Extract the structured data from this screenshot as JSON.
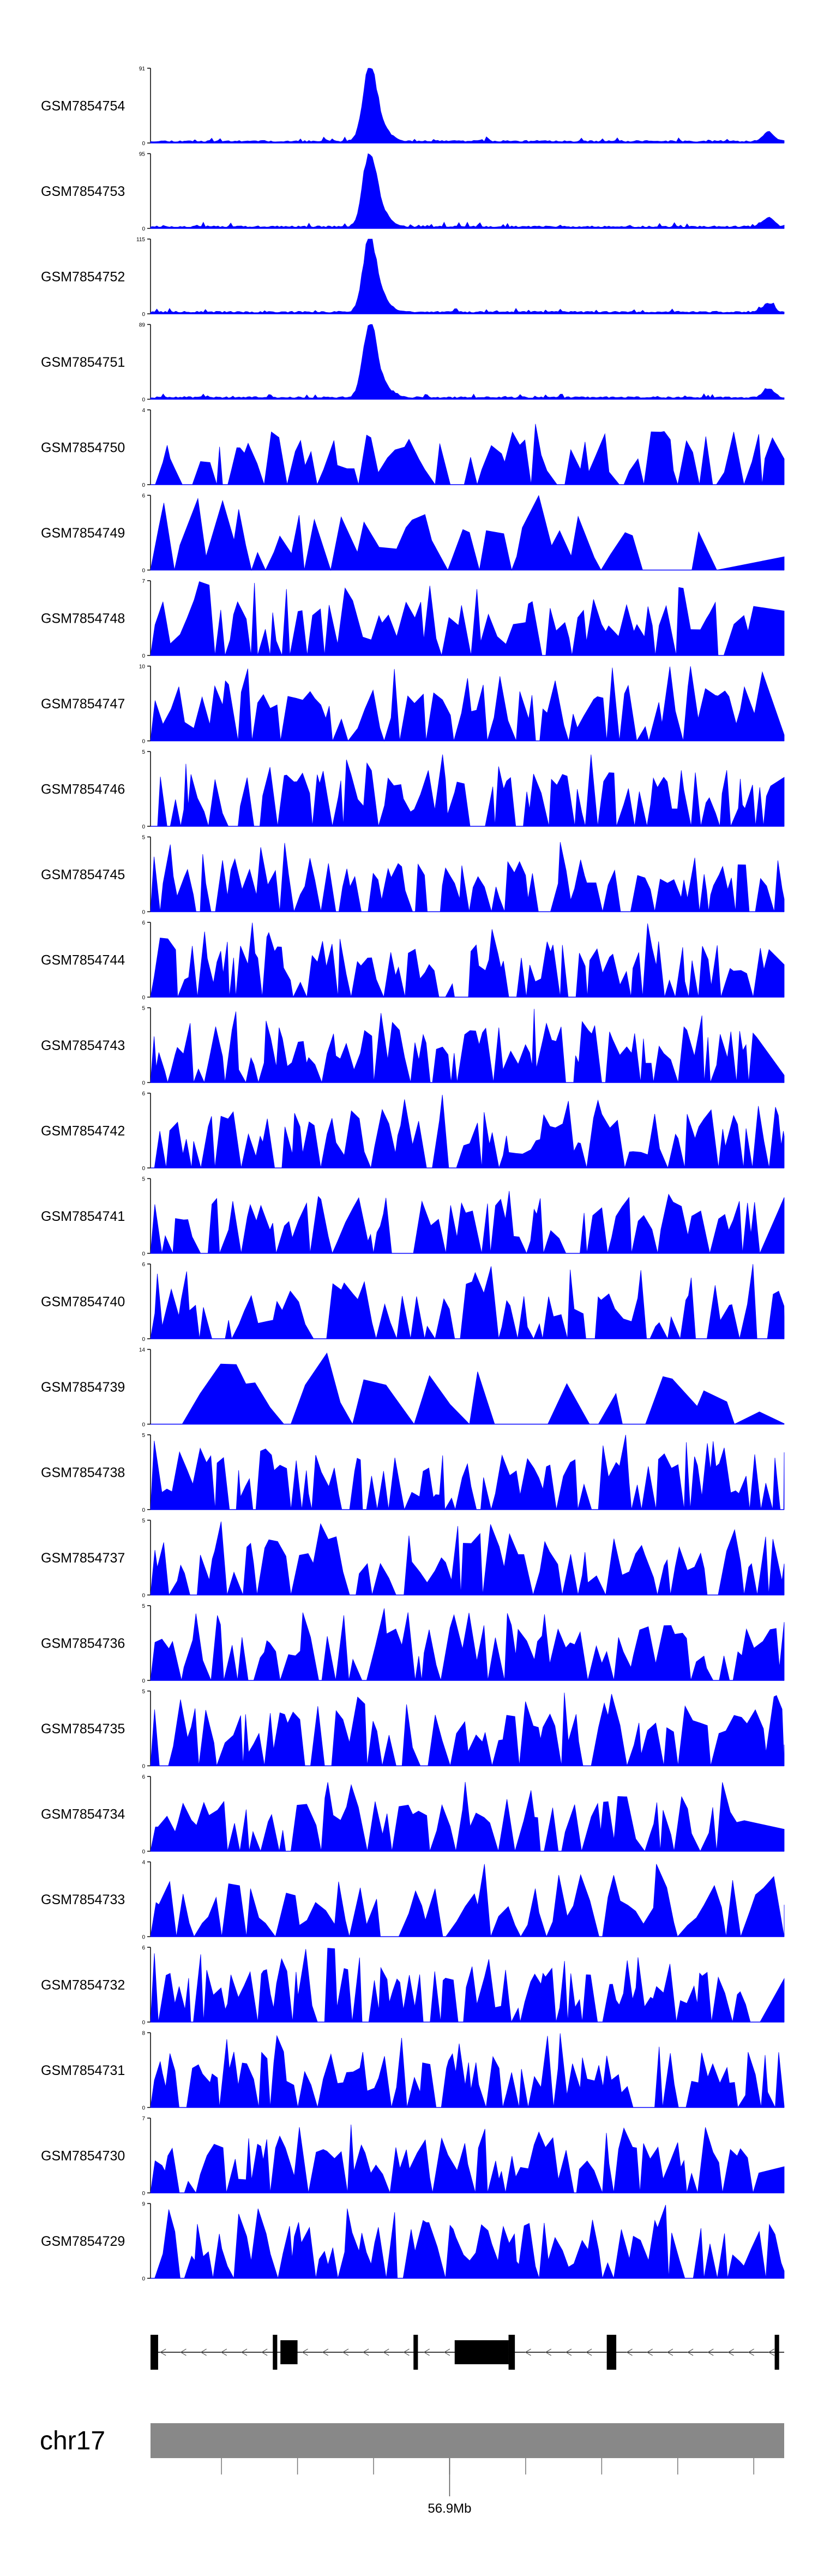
{
  "chart_data": {
    "type": "area",
    "description": "Genome browser coverage tracks",
    "fill_color": "#0000ff",
    "axis_color": "#000000",
    "tracks": [
      {
        "name": "GSM7854754",
        "ymax": 91,
        "ymin": 0,
        "seed": 11,
        "mode": "peak"
      },
      {
        "name": "GSM7854753",
        "ymax": 95,
        "ymin": 0,
        "seed": 23,
        "mode": "peak"
      },
      {
        "name": "GSM7854752",
        "ymax": 115,
        "ymin": 0,
        "seed": 37,
        "mode": "peak"
      },
      {
        "name": "GSM7854751",
        "ymax": 89,
        "ymin": 0,
        "seed": 41,
        "mode": "peak"
      },
      {
        "name": "GSM7854750",
        "ymax": 4,
        "ymin": 0,
        "seed": 53,
        "mode": "noise",
        "n": 95
      },
      {
        "name": "GSM7854749",
        "ymax": 6,
        "ymin": 0,
        "seed": 67,
        "mode": "noise",
        "n": 55
      },
      {
        "name": "GSM7854748",
        "ymax": 7,
        "ymin": 0,
        "seed": 71,
        "mode": "noise",
        "n": 100
      },
      {
        "name": "GSM7854747",
        "ymax": 10,
        "ymin": 0,
        "seed": 83,
        "mode": "noise",
        "n": 100
      },
      {
        "name": "GSM7854746",
        "ymax": 5,
        "ymin": 0,
        "seed": 97,
        "mode": "noise",
        "n": 130
      },
      {
        "name": "GSM7854745",
        "ymax": 5,
        "ymin": 0,
        "seed": 101,
        "mode": "noise",
        "n": 130
      },
      {
        "name": "GSM7854744",
        "ymax": 6,
        "ymin": 0,
        "seed": 113,
        "mode": "noise",
        "n": 130
      },
      {
        "name": "GSM7854743",
        "ymax": 5,
        "ymin": 0,
        "seed": 127,
        "mode": "noise",
        "n": 130
      },
      {
        "name": "GSM7854742",
        "ymax": 6,
        "ymin": 0,
        "seed": 131,
        "mode": "noise",
        "n": 120
      },
      {
        "name": "GSM7854741",
        "ymax": 5,
        "ymin": 0,
        "seed": 149,
        "mode": "noise",
        "n": 110
      },
      {
        "name": "GSM7854740",
        "ymax": 6,
        "ymin": 0,
        "seed": 157,
        "mode": "noise",
        "n": 110
      },
      {
        "name": "GSM7854739",
        "ymax": 14,
        "ymin": 0,
        "seed": 163,
        "mode": "noise",
        "n": 40
      },
      {
        "name": "GSM7854738",
        "ymax": 5,
        "ymin": 0,
        "seed": 173,
        "mode": "noise",
        "n": 130
      },
      {
        "name": "GSM7854737",
        "ymax": 5,
        "ymin": 0,
        "seed": 181,
        "mode": "noise",
        "n": 110
      },
      {
        "name": "GSM7854736",
        "ymax": 5,
        "ymin": 0,
        "seed": 191,
        "mode": "noise",
        "n": 110
      },
      {
        "name": "GSM7854735",
        "ymax": 5,
        "ymin": 0,
        "seed": 199,
        "mode": "noise",
        "n": 120
      },
      {
        "name": "GSM7854734",
        "ymax": 6,
        "ymin": 0,
        "seed": 211,
        "mode": "noise",
        "n": 100
      },
      {
        "name": "GSM7854733",
        "ymax": 4,
        "ymin": 0,
        "seed": 223,
        "mode": "noise",
        "n": 90
      },
      {
        "name": "GSM7854732",
        "ymax": 6,
        "ymin": 0,
        "seed": 227,
        "mode": "noise",
        "n": 130
      },
      {
        "name": "GSM7854731",
        "ymax": 8,
        "ymin": 0,
        "seed": 233,
        "mode": "noise",
        "n": 130
      },
      {
        "name": "GSM7854730",
        "ymax": 7,
        "ymin": 0,
        "seed": 239,
        "mode": "noise",
        "n": 110
      },
      {
        "name": "GSM7854729",
        "ymax": 9,
        "ymin": 0,
        "seed": 251,
        "mode": "noise",
        "n": 120
      }
    ],
    "gene_track": {
      "strand": "-",
      "exons_fraction": [
        [
          0.0,
          0.012
        ],
        [
          0.193,
          0.2
        ],
        [
          0.205,
          0.232
        ],
        [
          0.415,
          0.422
        ],
        [
          0.48,
          0.565
        ],
        [
          0.565,
          0.575
        ],
        [
          0.72,
          0.735
        ],
        [
          0.985,
          0.992
        ]
      ],
      "introns_fraction": [
        [
          0.0,
          1.0
        ]
      ]
    },
    "ideogram": {
      "chromosome": "chr17",
      "position_label": "56.9Mb",
      "ticks_fraction": [
        0.112,
        0.232,
        0.352,
        0.472,
        0.592,
        0.712,
        0.832,
        0.952
      ],
      "label_tick_fraction": 0.472
    }
  }
}
